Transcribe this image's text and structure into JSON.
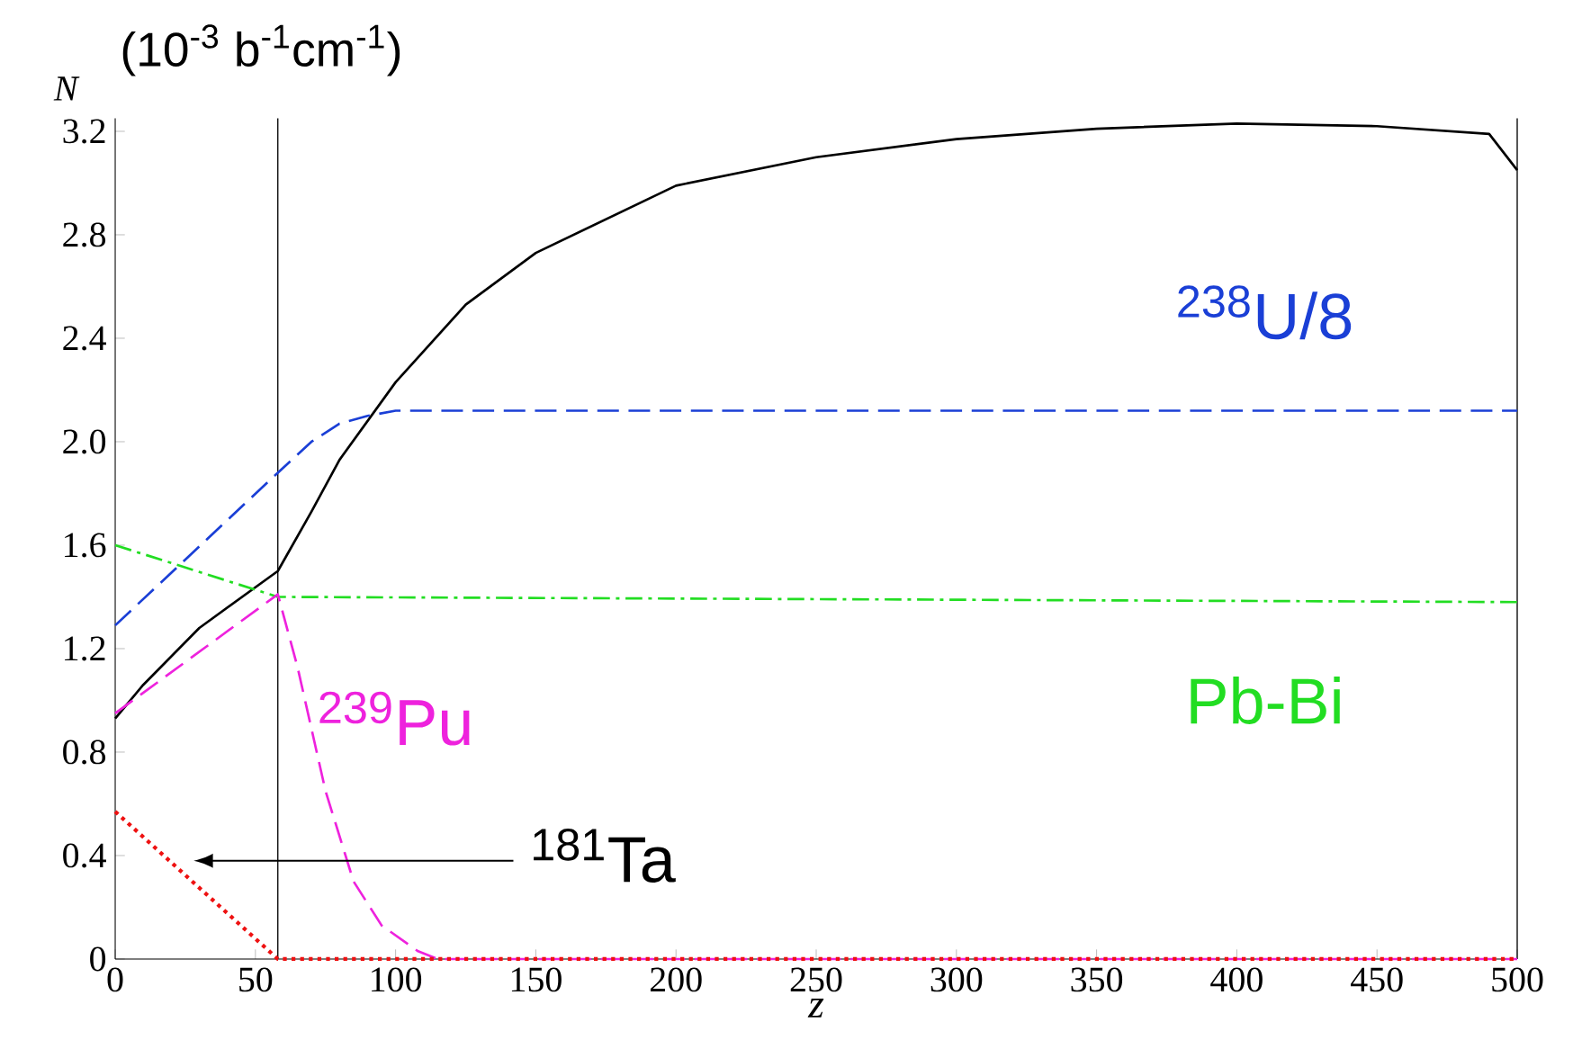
{
  "chart_data": {
    "type": "line",
    "xlabel": "z",
    "ylabel": "N",
    "annotations": [
      "(10$^{-3}$ b$^{-1}$cm$^{-1}$)"
    ],
    "xlim": [
      0,
      500
    ],
    "ylim": [
      0,
      3.25
    ],
    "xticks": [
      0,
      50,
      100,
      150,
      200,
      250,
      300,
      350,
      400,
      450,
      500
    ],
    "yticks": [
      0,
      0.4,
      0.8,
      1.2,
      1.6,
      {
        "value": 2,
        "label": "2.0"
      },
      2.4,
      2.8,
      3.2
    ],
    "grid": false,
    "marker": "none",
    "ref_lines": [
      {
        "axis": "x",
        "value": 58,
        "color": "#000000"
      }
    ],
    "series": [
      {
        "color": "#000000",
        "line_style": "solid",
        "x": [
          0,
          10,
          30,
          58,
          70,
          80,
          100,
          125,
          150,
          200,
          250,
          300,
          350,
          400,
          450,
          490,
          500
        ],
        "values": [
          0.93,
          1.06,
          1.28,
          1.5,
          1.73,
          1.93,
          2.23,
          2.53,
          2.73,
          2.99,
          3.1,
          3.17,
          3.21,
          3.23,
          3.22,
          3.19,
          3.05
        ]
      },
      {
        "name": "$^{238}$U/8",
        "color": "#1a3fd6",
        "line_style": "dashed",
        "x": [
          0,
          58,
          70,
          80,
          90,
          100,
          500
        ],
        "values": [
          1.29,
          1.88,
          2.0,
          2.07,
          2.1,
          2.12,
          2.12
        ]
      },
      {
        "name": "Pb-Bi",
        "color": "#22dd22",
        "line_style": "dashdot",
        "x": [
          0,
          58,
          500
        ],
        "values": [
          1.6,
          1.4,
          1.38
        ]
      },
      {
        "name": "$^{239}$Pu",
        "color": "#ee22dd",
        "line_style": "dashed",
        "x": [
          0,
          58,
          65,
          75,
          85,
          95,
          108,
          115,
          500
        ],
        "values": [
          0.95,
          1.41,
          1.13,
          0.65,
          0.3,
          0.13,
          0.03,
          0,
          0
        ]
      },
      {
        "name": "$^{181}$Ta",
        "color": "#ee1111",
        "line_style": "dotted",
        "x": [
          0,
          58,
          500
        ],
        "values": [
          0.57,
          0,
          0
        ]
      }
    ]
  }
}
